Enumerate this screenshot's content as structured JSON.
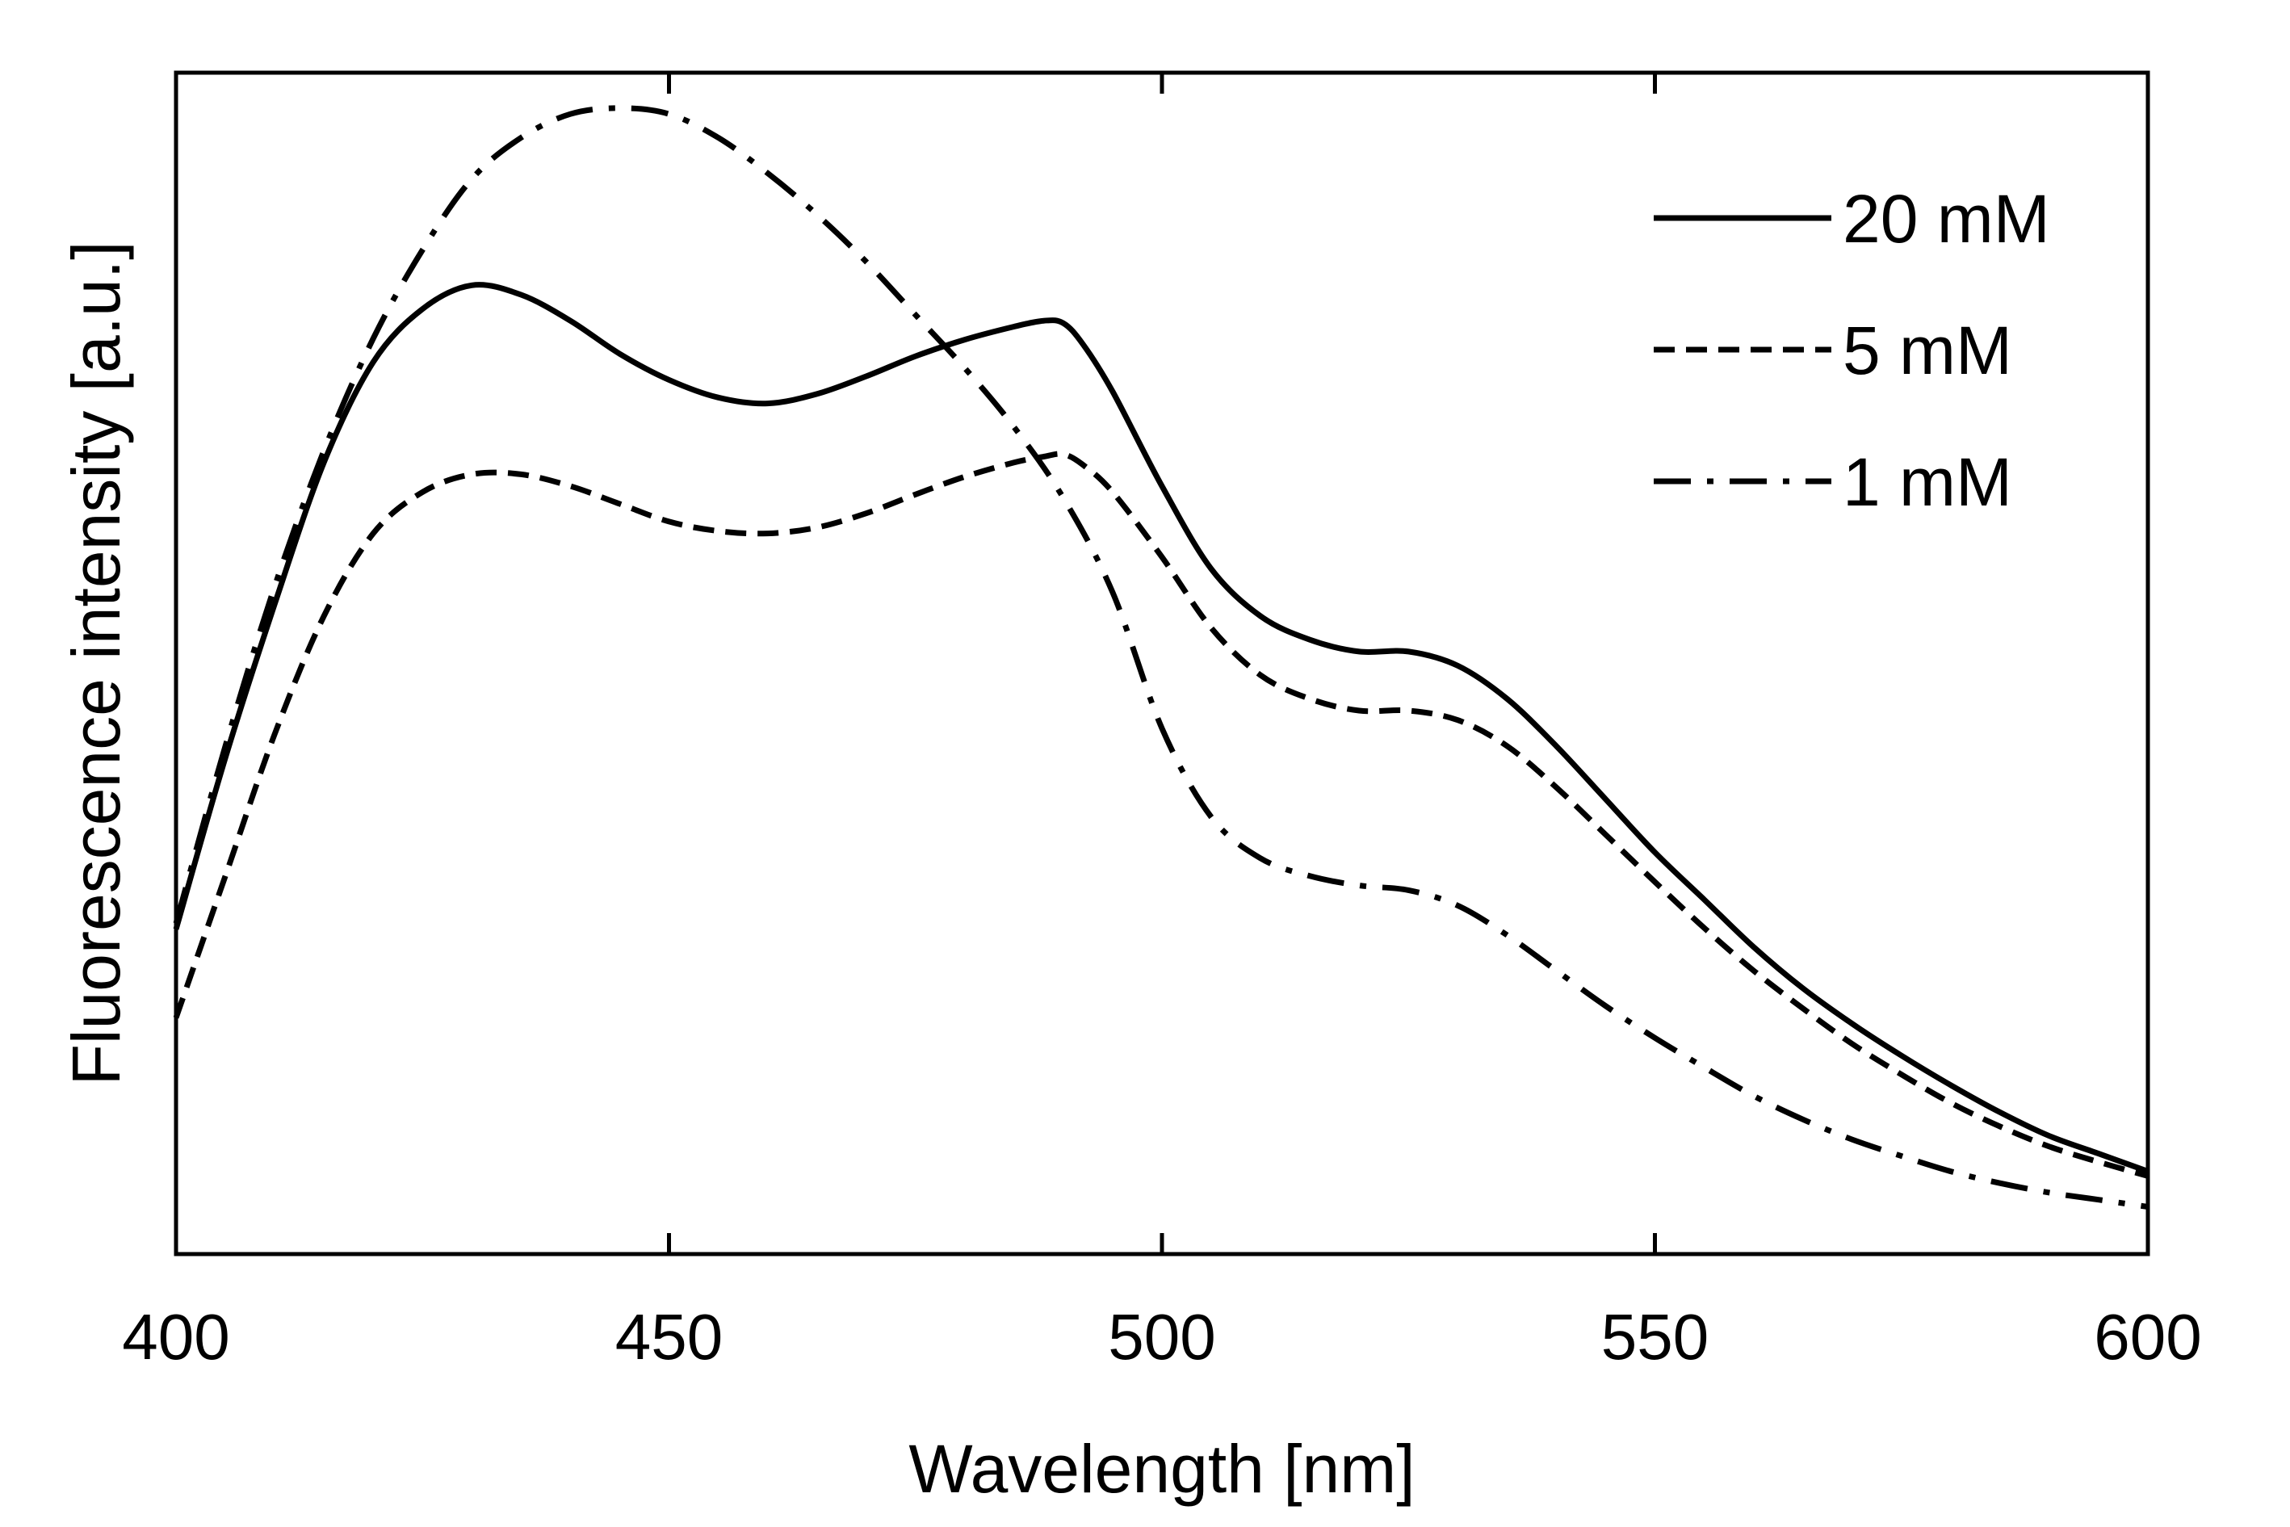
{
  "chart_data": {
    "type": "line",
    "title": "",
    "xlabel": "Wavelength [nm]",
    "ylabel": "Fluorescence intensity [a.u.]",
    "xlim": [
      400,
      600
    ],
    "ylim": [
      0,
      1
    ],
    "xticks": [
      400,
      450,
      500,
      550,
      600
    ],
    "xtick_labels": [
      "400",
      "450",
      "500",
      "550",
      "600"
    ],
    "yticks_labeled": false,
    "grid": false,
    "legend_position": "top-right",
    "series": [
      {
        "name": "20 mM",
        "line_style": "solid",
        "color": "#000000",
        "x": [
          400,
          405,
          410,
          415,
          420,
          425,
          430,
          435,
          440,
          445,
          450,
          455,
          460,
          465,
          470,
          475,
          480,
          485,
          488,
          490,
          492,
          495,
          500,
          505,
          510,
          515,
          520,
          525,
          530,
          535,
          540,
          545,
          550,
          555,
          560,
          565,
          570,
          575,
          580,
          585,
          590,
          595,
          600
        ],
        "y": [
          0.275,
          0.42,
          0.55,
          0.67,
          0.755,
          0.8,
          0.82,
          0.812,
          0.79,
          0.762,
          0.74,
          0.725,
          0.72,
          0.728,
          0.743,
          0.76,
          0.774,
          0.785,
          0.79,
          0.788,
          0.77,
          0.73,
          0.65,
          0.58,
          0.54,
          0.52,
          0.51,
          0.51,
          0.498,
          0.47,
          0.43,
          0.385,
          0.34,
          0.3,
          0.26,
          0.225,
          0.195,
          0.168,
          0.143,
          0.12,
          0.1,
          0.085,
          0.07
        ]
      },
      {
        "name": "5 mM",
        "line_style": "dashed",
        "color": "#000000",
        "x": [
          400,
          405,
          410,
          415,
          420,
          425,
          430,
          435,
          440,
          445,
          450,
          455,
          460,
          465,
          470,
          475,
          480,
          485,
          488,
          490,
          492,
          495,
          500,
          505,
          510,
          515,
          520,
          525,
          530,
          535,
          540,
          545,
          550,
          555,
          560,
          565,
          570,
          575,
          580,
          585,
          590,
          595,
          600
        ],
        "y": [
          0.2,
          0.32,
          0.44,
          0.54,
          0.61,
          0.645,
          0.66,
          0.66,
          0.65,
          0.635,
          0.62,
          0.612,
          0.61,
          0.615,
          0.627,
          0.643,
          0.658,
          0.67,
          0.675,
          0.677,
          0.668,
          0.645,
          0.59,
          0.53,
          0.49,
          0.47,
          0.46,
          0.46,
          0.452,
          0.43,
          0.395,
          0.355,
          0.315,
          0.276,
          0.24,
          0.208,
          0.178,
          0.152,
          0.128,
          0.108,
          0.091,
          0.078,
          0.066
        ]
      },
      {
        "name": "1 mM",
        "line_style": "dash-dot",
        "color": "#000000",
        "x": [
          400,
          405,
          410,
          415,
          420,
          425,
          430,
          435,
          440,
          445,
          450,
          455,
          460,
          465,
          470,
          475,
          480,
          485,
          490,
          495,
          500,
          505,
          510,
          515,
          520,
          525,
          530,
          535,
          540,
          545,
          550,
          555,
          560,
          565,
          570,
          575,
          580,
          585,
          590,
          595,
          600
        ],
        "y": [
          0.28,
          0.43,
          0.565,
          0.68,
          0.775,
          0.85,
          0.91,
          0.945,
          0.965,
          0.97,
          0.965,
          0.945,
          0.915,
          0.88,
          0.84,
          0.795,
          0.75,
          0.7,
          0.64,
          0.56,
          0.445,
          0.37,
          0.335,
          0.32,
          0.312,
          0.308,
          0.295,
          0.27,
          0.24,
          0.21,
          0.183,
          0.158,
          0.134,
          0.114,
          0.097,
          0.083,
          0.07,
          0.06,
          0.052,
          0.046,
          0.04
        ]
      }
    ]
  }
}
